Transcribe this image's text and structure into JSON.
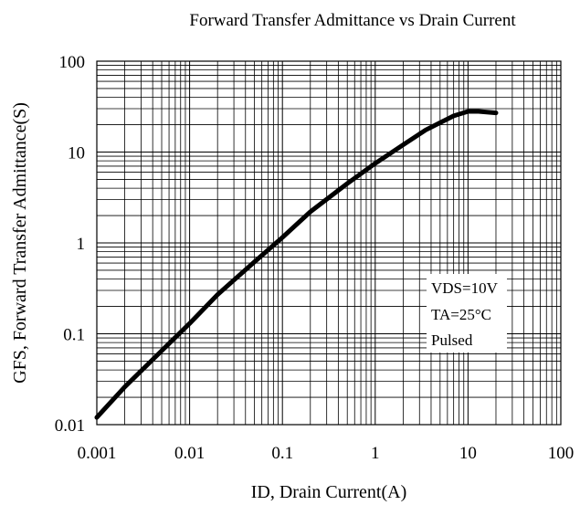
{
  "chart_data": {
    "type": "line",
    "title": "Forward Transfer Admittance vs Drain Current",
    "xlabel": "ID, Drain Current(A)",
    "ylabel": "GFS, Forward Transfer Admittance(S)",
    "x_scale": "log",
    "y_scale": "log",
    "xlim": [
      0.001,
      100
    ],
    "ylim": [
      0.01,
      100
    ],
    "grid": true,
    "x_ticks": [
      "0.001",
      "0.01",
      "0.1",
      "1",
      "10",
      "100"
    ],
    "y_ticks": [
      "0.01",
      "0.1",
      "1",
      "10",
      "100"
    ],
    "series": [
      {
        "color": "#000000",
        "x": [
          0.001,
          0.002,
          0.005,
          0.01,
          0.02,
          0.05,
          0.1,
          0.2,
          0.5,
          1,
          2,
          3.5,
          5,
          7,
          10,
          13,
          20
        ],
        "y": [
          0.012,
          0.026,
          0.065,
          0.13,
          0.27,
          0.62,
          1.15,
          2.2,
          4.5,
          7.5,
          12,
          17.5,
          21,
          25,
          28,
          28,
          27
        ]
      }
    ],
    "annotations": {
      "vds": "VDS=10V",
      "ta": "TA=25°C",
      "mode": "Pulsed"
    }
  }
}
